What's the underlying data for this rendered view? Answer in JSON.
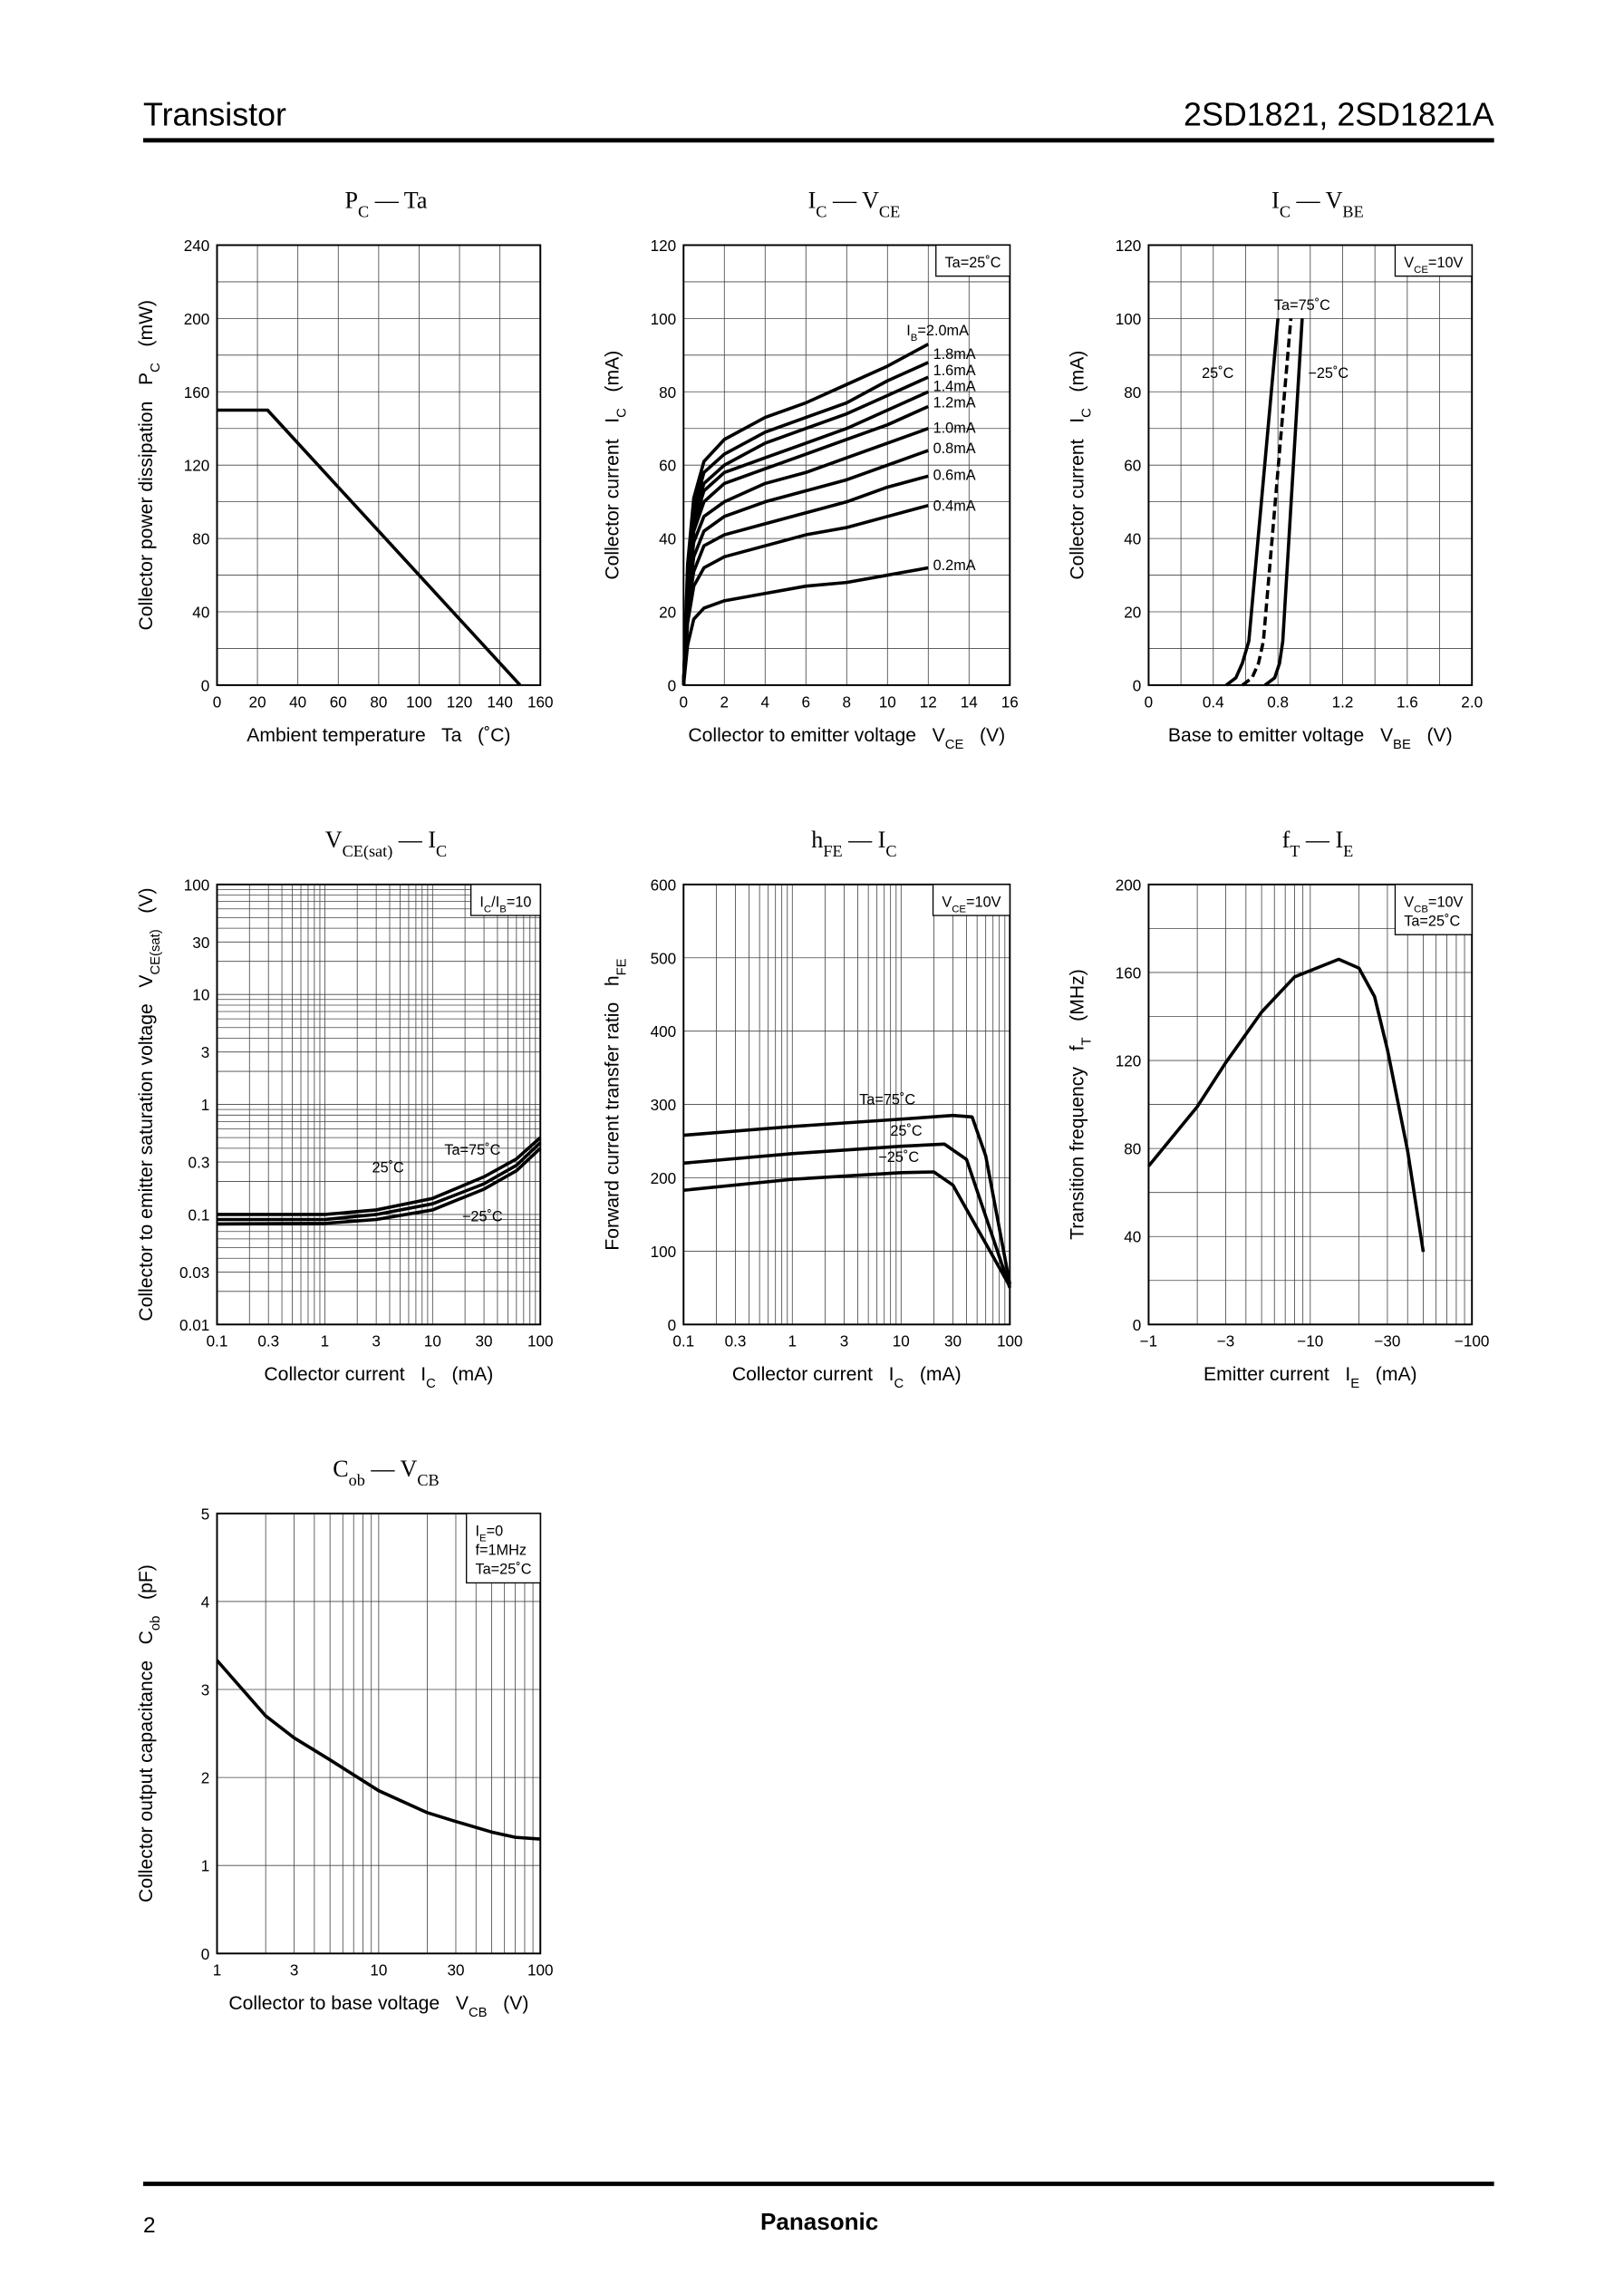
{
  "header": {
    "left": "Transistor",
    "right": "2SD1821, 2SD1821A"
  },
  "chart_data": [
    {
      "type": "line",
      "title": [
        {
          "t": "P"
        },
        {
          "sub": "C"
        },
        {
          "t": " — Ta"
        }
      ],
      "xlabel": [
        {
          "t": "Ambient temperature   Ta   (˚C)"
        }
      ],
      "ylabel": [
        {
          "t": "Collector power dissipation   P"
        },
        {
          "sub": "C"
        },
        {
          "t": "   (mW)"
        }
      ],
      "xscale": "linear",
      "yscale": "linear",
      "xlim": [
        0,
        160
      ],
      "ylim": [
        0,
        240
      ],
      "xticks": [
        0,
        20,
        40,
        60,
        80,
        100,
        120,
        140,
        160
      ],
      "yticks": [
        0,
        40,
        80,
        120,
        160,
        200,
        240
      ],
      "ygrid": [
        0,
        20,
        40,
        60,
        80,
        100,
        120,
        140,
        160,
        180,
        200,
        220,
        240
      ],
      "series": [
        {
          "color": "#000000",
          "x": [
            0,
            25,
            150
          ],
          "values": [
            150,
            150,
            0
          ]
        }
      ]
    },
    {
      "type": "line",
      "title": [
        {
          "t": "I"
        },
        {
          "sub": "C"
        },
        {
          "t": " — V"
        },
        {
          "sub": "CE"
        }
      ],
      "xlabel": [
        {
          "t": "Collector to emitter voltage   V"
        },
        {
          "sub": "CE"
        },
        {
          "t": "   (V)"
        }
      ],
      "ylabel": [
        {
          "t": "Collector current   I"
        },
        {
          "sub": "C"
        },
        {
          "t": "   (mA)"
        }
      ],
      "xscale": "linear",
      "yscale": "linear",
      "xlim": [
        0,
        16
      ],
      "ylim": [
        0,
        120
      ],
      "xticks": [
        0,
        2,
        4,
        6,
        8,
        10,
        12,
        14,
        16
      ],
      "yticks": [
        0,
        20,
        40,
        60,
        80,
        100,
        120
      ],
      "ygrid": [
        0,
        10,
        20,
        30,
        40,
        50,
        60,
        70,
        80,
        90,
        100,
        110,
        120
      ],
      "annotation": [
        [
          {
            "t": "Ta=25˚C"
          }
        ]
      ],
      "x": [
        0,
        0.2,
        0.5,
        1,
        2,
        4,
        6,
        8,
        10,
        12
      ],
      "series": [
        {
          "name": [
            {
              "t": "I"
            },
            {
              "sub": "B"
            },
            {
              "t": "=2.0mA"
            }
          ],
          "color": "#000000",
          "values": [
            0,
            33,
            51,
            61,
            67,
            73,
            77,
            82,
            87,
            93
          ]
        },
        {
          "name": "1.8mA",
          "color": "#000000",
          "values": [
            0,
            31,
            48,
            58,
            63,
            69,
            73,
            77,
            83,
            88
          ]
        },
        {
          "name": "1.6mA",
          "color": "#000000",
          "values": [
            0,
            29,
            46,
            55,
            60,
            66,
            70,
            74,
            79,
            84
          ]
        },
        {
          "name": "1.4mA",
          "color": "#000000",
          "values": [
            0,
            28,
            44,
            53,
            58,
            62,
            66,
            70,
            75,
            80
          ]
        },
        {
          "name": "1.2mA",
          "color": "#000000",
          "values": [
            0,
            27,
            42,
            50,
            55,
            59,
            63,
            67,
            71,
            76
          ]
        },
        {
          "name": "1.0mA",
          "color": "#000000",
          "values": [
            0,
            25,
            39,
            46,
            50,
            55,
            58,
            62,
            66,
            70
          ]
        },
        {
          "name": "0.8mA",
          "color": "#000000",
          "values": [
            0,
            22,
            35,
            42,
            46,
            50,
            53,
            56,
            60,
            64
          ]
        },
        {
          "name": "0.6mA",
          "color": "#000000",
          "values": [
            0,
            20,
            31,
            38,
            41,
            44,
            47,
            50,
            54,
            57
          ]
        },
        {
          "name": "0.4mA",
          "color": "#000000",
          "values": [
            0,
            17,
            27,
            32,
            35,
            38,
            41,
            43,
            46,
            49
          ]
        },
        {
          "name": "0.2mA",
          "color": "#000000",
          "values": [
            0,
            11,
            18,
            21,
            23,
            25,
            27,
            28,
            30,
            32
          ]
        }
      ]
    },
    {
      "type": "line",
      "title": [
        {
          "t": "I"
        },
        {
          "sub": "C"
        },
        {
          "t": " — V"
        },
        {
          "sub": "BE"
        }
      ],
      "xlabel": [
        {
          "t": "Base to emitter voltage   V"
        },
        {
          "sub": "BE"
        },
        {
          "t": "   (V)"
        }
      ],
      "ylabel": [
        {
          "t": "Collector current   I"
        },
        {
          "sub": "C"
        },
        {
          "t": "   (mA)"
        }
      ],
      "xscale": "linear",
      "yscale": "linear",
      "xlim": [
        0,
        2
      ],
      "ylim": [
        0,
        120
      ],
      "xticks": [
        0,
        0.4,
        0.8,
        1.2,
        1.6,
        {
          "value": 2,
          "label": "2.0"
        }
      ],
      "yticks": [
        0,
        20,
        40,
        60,
        80,
        100,
        120
      ],
      "xgrid": [
        0,
        0.2,
        0.4,
        0.6,
        0.8,
        1,
        1.2,
        1.4,
        1.6,
        1.8,
        2
      ],
      "ygrid": [
        0,
        10,
        20,
        30,
        40,
        50,
        60,
        70,
        80,
        90,
        100,
        110,
        120
      ],
      "annotation": [
        [
          {
            "t": "V"
          },
          {
            "sub": "CE"
          },
          {
            "t": "=10V"
          }
        ]
      ],
      "series": [
        {
          "name": "Ta=75˚C",
          "color": "#000000",
          "dash": false,
          "x": [
            0.48,
            0.54,
            0.58,
            0.62,
            0.8
          ],
          "values": [
            0,
            2,
            6,
            12,
            100
          ]
        },
        {
          "name": "25˚C",
          "color": "#000000",
          "dash": true,
          "x": [
            0.58,
            0.64,
            0.68,
            0.71,
            0.88
          ],
          "values": [
            0,
            2,
            6,
            12,
            100
          ]
        },
        {
          "name": "−25˚C",
          "color": "#000000",
          "dash": false,
          "x": [
            0.72,
            0.78,
            0.81,
            0.83,
            0.95
          ],
          "values": [
            0,
            2,
            6,
            12,
            100
          ]
        }
      ]
    },
    {
      "type": "line",
      "title": [
        {
          "t": "V"
        },
        {
          "sub": "CE(sat)"
        },
        {
          "t": " — I"
        },
        {
          "sub": "C"
        }
      ],
      "xlabel": [
        {
          "t": "Collector current   I"
        },
        {
          "sub": "C"
        },
        {
          "t": "   (mA)"
        }
      ],
      "ylabel": [
        {
          "t": "Collector to emitter saturation voltage   V"
        },
        {
          "sub": "CE(sat)"
        },
        {
          "t": "   (V)"
        }
      ],
      "xscale": "log",
      "yscale": "log",
      "xlim": [
        0.1,
        100
      ],
      "ylim": [
        0.01,
        100
      ],
      "xticks": [
        0.1,
        0.3,
        1,
        3,
        10,
        30,
        100
      ],
      "yticks": [
        0.01,
        0.03,
        0.1,
        0.3,
        1,
        3,
        10,
        30,
        100
      ],
      "xgrid": [
        0.1,
        0.2,
        0.3,
        0.4,
        0.5,
        0.6,
        0.7,
        0.8,
        0.9,
        1,
        2,
        3,
        4,
        5,
        6,
        7,
        8,
        9,
        10,
        20,
        30,
        40,
        50,
        60,
        70,
        80,
        90,
        100
      ],
      "ygrid": [
        0.01,
        0.02,
        0.03,
        0.04,
        0.05,
        0.06,
        0.07,
        0.08,
        0.09,
        0.1,
        0.2,
        0.3,
        0.4,
        0.5,
        0.6,
        0.7,
        0.8,
        0.9,
        1,
        2,
        3,
        4,
        5,
        6,
        7,
        8,
        9,
        10,
        20,
        30,
        40,
        50,
        60,
        70,
        80,
        90,
        100
      ],
      "annotation": [
        [
          {
            "t": "I"
          },
          {
            "sub": "C"
          },
          {
            "t": "/I"
          },
          {
            "sub": "B"
          },
          {
            "t": "=10"
          }
        ]
      ],
      "series": [
        {
          "name": "Ta=75˚C",
          "color": "#000000",
          "x": [
            0.1,
            1,
            3,
            10,
            30,
            60,
            100
          ],
          "values": [
            0.1,
            0.1,
            0.11,
            0.14,
            0.22,
            0.32,
            0.5
          ]
        },
        {
          "name": "25˚C",
          "color": "#000000",
          "x": [
            0.1,
            1,
            3,
            10,
            30,
            60,
            100
          ],
          "values": [
            0.09,
            0.09,
            0.1,
            0.125,
            0.19,
            0.28,
            0.45
          ]
        },
        {
          "name": "−25˚C",
          "color": "#000000",
          "x": [
            0.1,
            1,
            3,
            10,
            30,
            60,
            100
          ],
          "values": [
            0.082,
            0.083,
            0.09,
            0.11,
            0.17,
            0.25,
            0.4
          ]
        }
      ]
    },
    {
      "type": "line",
      "title": [
        {
          "t": "h"
        },
        {
          "sub": "FE"
        },
        {
          "t": " — I"
        },
        {
          "sub": "C"
        }
      ],
      "xlabel": [
        {
          "t": "Collector current   I"
        },
        {
          "sub": "C"
        },
        {
          "t": "   (mA)"
        }
      ],
      "ylabel": [
        {
          "t": "Forward current transfer ratio   h"
        },
        {
          "sub": "FE"
        }
      ],
      "xscale": "log",
      "yscale": "linear",
      "xlim": [
        0.1,
        100
      ],
      "ylim": [
        0,
        600
      ],
      "xticks": [
        0.1,
        0.3,
        1,
        3,
        10,
        30,
        100
      ],
      "yticks": [
        0,
        100,
        200,
        300,
        400,
        500,
        600
      ],
      "xgrid": [
        0.1,
        0.2,
        0.3,
        0.4,
        0.5,
        0.6,
        0.7,
        0.8,
        0.9,
        1,
        2,
        3,
        4,
        5,
        6,
        7,
        8,
        9,
        10,
        20,
        30,
        40,
        50,
        60,
        70,
        80,
        90,
        100
      ],
      "annotation": [
        [
          {
            "t": "V"
          },
          {
            "sub": "CE"
          },
          {
            "t": "=10V"
          }
        ]
      ],
      "series": [
        {
          "name": "Ta=75˚C",
          "color": "#000000",
          "x": [
            0.1,
            1,
            10,
            30,
            45,
            60,
            100
          ],
          "values": [
            258,
            270,
            280,
            285,
            283,
            230,
            55
          ]
        },
        {
          "name": "25˚C",
          "color": "#000000",
          "x": [
            0.1,
            1,
            10,
            25,
            40,
            100
          ],
          "values": [
            220,
            233,
            243,
            246,
            225,
            50
          ]
        },
        {
          "name": "−25˚C",
          "color": "#000000",
          "x": [
            0.1,
            1,
            10,
            20,
            30,
            100
          ],
          "values": [
            183,
            198,
            207,
            208,
            190,
            52
          ]
        }
      ]
    },
    {
      "type": "line",
      "title": [
        {
          "t": "f"
        },
        {
          "sub": "T"
        },
        {
          "t": " — I"
        },
        {
          "sub": "E"
        }
      ],
      "xlabel": [
        {
          "t": "Emitter current   I"
        },
        {
          "sub": "E"
        },
        {
          "t": "   (mA)"
        }
      ],
      "ylabel": [
        {
          "t": "Transition frequency   f"
        },
        {
          "sub": "T"
        },
        {
          "t": "   (MHz)"
        }
      ],
      "xscale": "log",
      "yscale": "linear",
      "xlim": [
        -1,
        -100
      ],
      "ylim": [
        0,
        200
      ],
      "xticks": [
        {
          "value": -1,
          "label": "−1"
        },
        {
          "value": -3,
          "label": "−3"
        },
        {
          "value": -10,
          "label": "−10"
        },
        {
          "value": -30,
          "label": "−30"
        },
        {
          "value": -100,
          "label": "−100"
        }
      ],
      "yticks": [
        0,
        40,
        80,
        120,
        160,
        200
      ],
      "xgrid": [
        -1,
        -2,
        -3,
        -4,
        -5,
        -6,
        -7,
        -8,
        -9,
        -10,
        -20,
        -30,
        -40,
        -50,
        -60,
        -70,
        -80,
        -90,
        -100
      ],
      "ygrid": [
        0,
        20,
        40,
        60,
        80,
        100,
        120,
        140,
        160,
        180,
        200
      ],
      "annotation": [
        [
          {
            "t": "V"
          },
          {
            "sub": "CB"
          },
          {
            "t": "=10V"
          }
        ],
        [
          {
            "t": "Ta=25˚C"
          }
        ]
      ],
      "series": [
        {
          "color": "#000000",
          "x": [
            -1,
            -2,
            -3,
            -5,
            -8,
            -15,
            -20,
            -25,
            -30,
            -40,
            -50
          ],
          "values": [
            72,
            99,
            119,
            142,
            158,
            166,
            162,
            149,
            125,
            79,
            33
          ]
        }
      ]
    },
    {
      "type": "line",
      "title": [
        {
          "t": "C"
        },
        {
          "sub": "ob"
        },
        {
          "t": " — V"
        },
        {
          "sub": "CB"
        }
      ],
      "xlabel": [
        {
          "t": "Collector to base voltage   V"
        },
        {
          "sub": "CB"
        },
        {
          "t": "   (V)"
        }
      ],
      "ylabel": [
        {
          "t": "Collector output capacitance   C"
        },
        {
          "sub": "ob"
        },
        {
          "t": "   (pF)"
        }
      ],
      "xscale": "log",
      "yscale": "linear",
      "xlim": [
        1,
        100
      ],
      "ylim": [
        0,
        5
      ],
      "xticks": [
        1,
        3,
        10,
        30,
        100
      ],
      "yticks": [
        0,
        1,
        2,
        3,
        4,
        5
      ],
      "xgrid": [
        1,
        2,
        3,
        4,
        5,
        6,
        7,
        8,
        9,
        10,
        20,
        30,
        40,
        50,
        60,
        70,
        80,
        90,
        100
      ],
      "annotation": [
        [
          {
            "t": "I"
          },
          {
            "sub": "E"
          },
          {
            "t": "=0"
          }
        ],
        [
          {
            "t": "f=1MHz"
          }
        ],
        [
          {
            "t": "Ta=25˚C"
          }
        ]
      ],
      "series": [
        {
          "color": "#000000",
          "x": [
            1,
            2,
            3,
            5,
            10,
            20,
            30,
            50,
            70,
            100
          ],
          "values": [
            3.33,
            2.7,
            2.45,
            2.2,
            1.85,
            1.6,
            1.5,
            1.38,
            1.32,
            1.3
          ]
        }
      ]
    }
  ],
  "footer": {
    "page": "2",
    "brand": "Panasonic"
  }
}
